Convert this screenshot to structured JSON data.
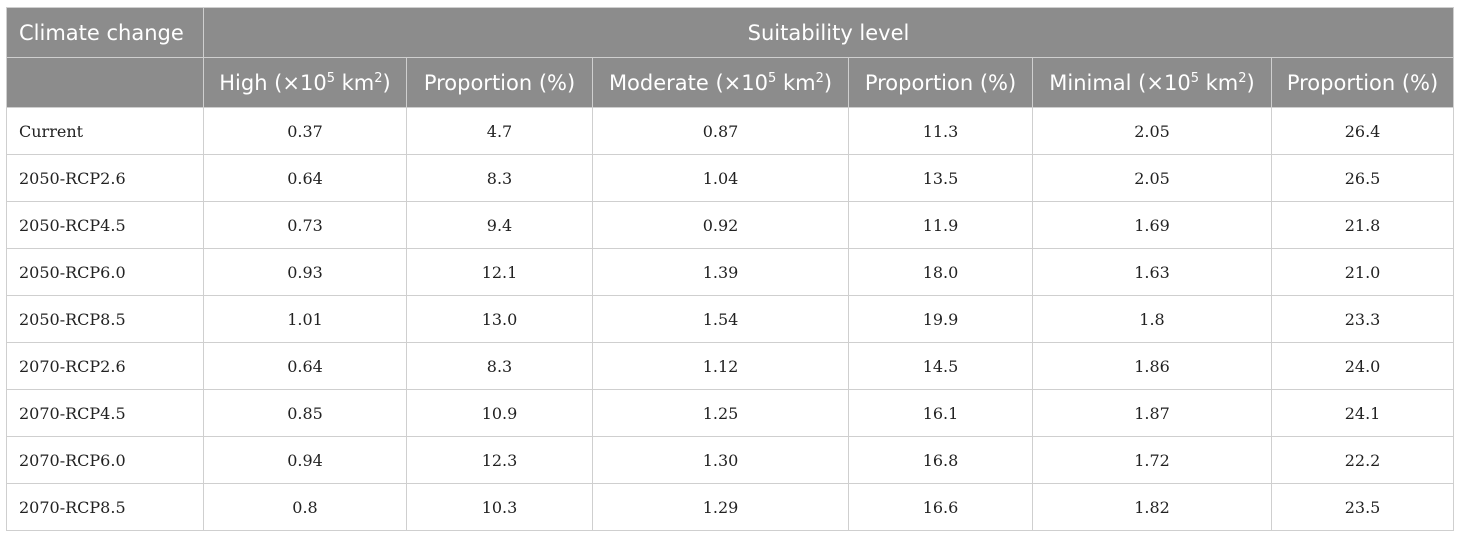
{
  "table": {
    "header_row1": {
      "col0": "Climate change",
      "group": "Suitability level"
    },
    "header_row2": {
      "high": "High (×10",
      "high_exp": "5",
      "high_unit": " km",
      "high_unit_exp": "2",
      "high_close": ")",
      "high_prop": "Proportion (%)",
      "moderate": "Moderate (×10",
      "moderate_exp": "5",
      "moderate_unit": " km",
      "moderate_unit_exp": "2",
      "moderate_close": ")",
      "moderate_prop": "Proportion (%)",
      "minimal": "Minimal (×10",
      "minimal_exp": "5",
      "minimal_unit": " km",
      "minimal_unit_exp": "2",
      "minimal_close": ")",
      "minimal_prop": "Proportion (%)"
    },
    "rows": [
      [
        "Current",
        "0.37",
        "4.7",
        "0.87",
        "11.3",
        "2.05",
        "26.4"
      ],
      [
        "2050-RCP2.6",
        "0.64",
        "8.3",
        "1.04",
        "13.5",
        "2.05",
        "26.5"
      ],
      [
        "2050-RCP4.5",
        "0.73",
        "9.4",
        "0.92",
        "11.9",
        "1.69",
        "21.8"
      ],
      [
        "2050-RCP6.0",
        "0.93",
        "12.1",
        "1.39",
        "18.0",
        "1.63",
        "21.0"
      ],
      [
        "2050-RCP8.5",
        "1.01",
        "13.0",
        "1.54",
        "19.9",
        "1.8",
        "23.3"
      ],
      [
        "2070-RCP2.6",
        "0.64",
        "8.3",
        "1.12",
        "14.5",
        "1.86",
        "24.0"
      ],
      [
        "2070-RCP4.5",
        "0.85",
        "10.9",
        "1.25",
        "16.1",
        "1.87",
        "24.1"
      ],
      [
        "2070-RCP6.0",
        "0.94",
        "12.3",
        "1.30",
        "16.8",
        "1.72",
        "22.2"
      ],
      [
        "2070-RCP8.5",
        "0.8",
        "10.3",
        "1.29",
        "16.6",
        "1.82",
        "23.5"
      ]
    ]
  },
  "colors": {
    "header_bg": "#8c8c8c",
    "header_text": "#ffffff",
    "border": "#cfcfcf"
  }
}
